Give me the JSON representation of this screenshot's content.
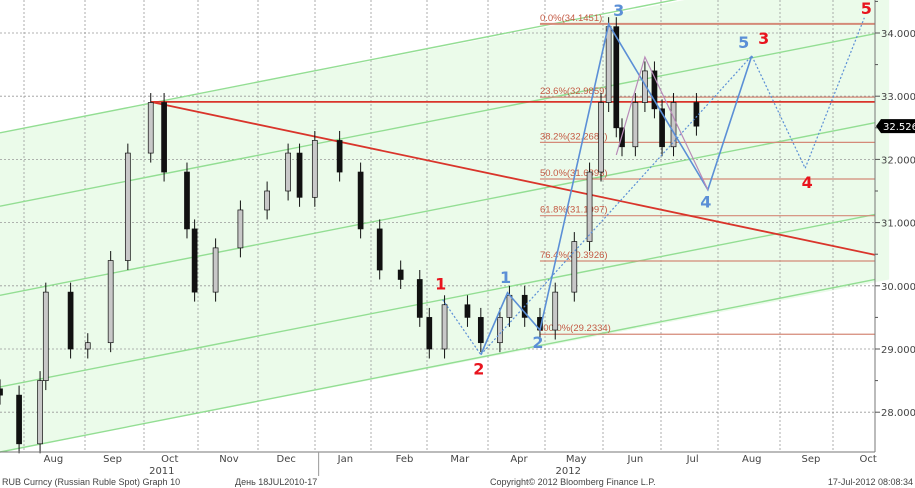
{
  "chart_data": {
    "type": "candlestick",
    "title": "RUB Curncy (Russian Ruble Spot) Graph 10",
    "period": "День 18JUL2010-17",
    "copyright": "Copyright© 2012 Bloomberg Finance L.P.",
    "timestamp": "17-Jul-2012 08:08:34",
    "ylim": [
      27.3,
      34.5
    ],
    "xlim": [
      "2011-07-18",
      "2012-10-26"
    ],
    "y_ticks": [
      "34.0000",
      "33.0000",
      "32.0000",
      "31.0000",
      "30.0000",
      "29.0000",
      "28.0000"
    ],
    "y_tick_values": [
      34,
      33,
      32,
      31,
      30,
      29,
      28
    ],
    "x_ticks": [
      {
        "label": "Aug",
        "date": "2011-08-15"
      },
      {
        "label": "Sep",
        "date": "2011-09-15"
      },
      {
        "label": "Oct",
        "date": "2011-10-15"
      },
      {
        "label": "Nov",
        "date": "2011-11-15"
      },
      {
        "label": "Dec",
        "date": "2011-12-15"
      },
      {
        "label": "Jan",
        "date": "2012-01-15"
      },
      {
        "label": "Feb",
        "date": "2012-02-15"
      },
      {
        "label": "Mar",
        "date": "2012-03-15"
      },
      {
        "label": "Apr",
        "date": "2012-04-15"
      },
      {
        "label": "May",
        "date": "2012-05-15"
      },
      {
        "label": "Jun",
        "date": "2012-06-15"
      },
      {
        "label": "Jul",
        "date": "2012-07-15"
      },
      {
        "label": "Aug",
        "date": "2012-08-15"
      },
      {
        "label": "Sep",
        "date": "2012-09-15"
      },
      {
        "label": "Oct",
        "date": "2012-10-15"
      }
    ],
    "year_labels": [
      {
        "label": "2011",
        "date": "2011-10-15"
      },
      {
        "label": "2012",
        "date": "2012-05-15"
      }
    ],
    "last_price": "32.5260",
    "last_price_value": 32.526,
    "grid": true,
    "series": [
      [
        "2011-07-18",
        28.27
      ],
      [
        "2011-07-28",
        27.5
      ],
      [
        "2011-08-08",
        28.5
      ],
      [
        "2011-08-11",
        29.9
      ],
      [
        "2011-08-24",
        29.0
      ],
      [
        "2011-09-02",
        29.1
      ],
      [
        "2011-09-14",
        30.4
      ],
      [
        "2011-09-23",
        32.1
      ],
      [
        "2011-10-05",
        32.9
      ],
      [
        "2011-10-12",
        31.8
      ],
      [
        "2011-10-24",
        30.9
      ],
      [
        "2011-10-28",
        29.9
      ],
      [
        "2011-11-08",
        30.6
      ],
      [
        "2011-11-21",
        31.2
      ],
      [
        "2011-12-05",
        31.5
      ],
      [
        "2011-12-16",
        32.1
      ],
      [
        "2011-12-22",
        31.4
      ],
      [
        "2011-12-30",
        32.3
      ],
      [
        "2012-01-12",
        31.8
      ],
      [
        "2012-01-23",
        30.9
      ],
      [
        "2012-02-02",
        30.25
      ],
      [
        "2012-02-13",
        30.1
      ],
      [
        "2012-02-23",
        29.5
      ],
      [
        "2012-02-28",
        29.0
      ],
      [
        "2012-03-07",
        29.7
      ],
      [
        "2012-03-19",
        29.5
      ],
      [
        "2012-03-26",
        29.1
      ],
      [
        "2012-04-05",
        29.5
      ],
      [
        "2012-04-10",
        29.85
      ],
      [
        "2012-04-18",
        29.5
      ],
      [
        "2012-04-26",
        29.3
      ],
      [
        "2012-05-04",
        29.9
      ],
      [
        "2012-05-14",
        30.7
      ],
      [
        "2012-05-22",
        31.8
      ],
      [
        "2012-05-28",
        32.9
      ],
      [
        "2012-06-01",
        34.1
      ],
      [
        "2012-06-05",
        32.5
      ],
      [
        "2012-06-08",
        32.2
      ],
      [
        "2012-06-15",
        32.9
      ],
      [
        "2012-06-20",
        33.4
      ],
      [
        "2012-06-25",
        32.8
      ],
      [
        "2012-06-29",
        32.2
      ],
      [
        "2012-07-05",
        32.9
      ],
      [
        "2012-07-17",
        32.526
      ]
    ],
    "fibonacci": {
      "start_date": "2012-04-26",
      "levels": [
        {
          "label": "0.0%(34.1451)",
          "value": 34.1451
        },
        {
          "label": "23.6%(32.9859)",
          "value": 32.9859
        },
        {
          "label": "38.2%(32.2688)",
          "value": 32.2688
        },
        {
          "label": "50.0%(31.6893)",
          "value": 31.6893
        },
        {
          "label": "61.8%(31.1097)",
          "value": 31.1097
        },
        {
          "label": "76.4%(30.3926)",
          "value": 30.3926
        },
        {
          "label": "100.0%(29.2334)",
          "value": 29.2334
        }
      ]
    },
    "resistance_line": {
      "value": 32.91,
      "from": "2011-10-05",
      "to": "2012-10-26"
    },
    "trend_line": {
      "from": [
        "2011-10-05",
        32.91
      ],
      "to": [
        "2012-10-26",
        30.49
      ]
    },
    "channel_lines": [
      {
        "from": [
          "2011-07-18",
          32.42
        ],
        "to": [
          "2012-10-26",
          35.15
        ]
      },
      {
        "from": [
          "2011-07-18",
          31.26
        ],
        "to": [
          "2012-10-26",
          33.99
        ]
      },
      {
        "from": [
          "2011-07-18",
          29.85
        ],
        "to": [
          "2012-10-26",
          32.58
        ]
      },
      {
        "from": [
          "2011-07-18",
          28.4
        ],
        "to": [
          "2012-10-26",
          31.13
        ]
      },
      {
        "from": [
          "2011-07-18",
          27.37
        ],
        "to": [
          "2012-10-26",
          30.1
        ]
      }
    ],
    "waves_blue": [
      {
        "label": "1",
        "date": "2012-04-09",
        "value": 29.89
      },
      {
        "label": "2",
        "date": "2012-04-26",
        "value": 29.3
      },
      {
        "label": "3",
        "date": "2012-06-01",
        "value": 34.14
      },
      {
        "label": "4",
        "date": "2012-07-23",
        "value": 31.52
      },
      {
        "label": "5",
        "date": "2012-08-15",
        "value": 33.64
      }
    ],
    "waves_red": [
      {
        "label": "1",
        "date": "2012-03-06",
        "value": 29.78
      },
      {
        "label": "2",
        "date": "2012-03-26",
        "value": 28.91
      },
      {
        "label": "3",
        "date": "2012-08-15",
        "value": 33.64
      },
      {
        "label": "4",
        "date": "2012-09-12",
        "value": 31.86
      },
      {
        "label": "5",
        "date": "2012-10-13",
        "value": 34.24
      }
    ],
    "pink_path": [
      [
        "2012-06-05",
        32.07
      ],
      [
        "2012-06-20",
        33.62
      ],
      [
        "2012-07-23",
        31.52
      ]
    ],
    "colors": {
      "channel": "#93de93",
      "channel_fill": "#ebfbea",
      "trend": "#d9352b",
      "fib": "#d48a78",
      "wave_blue": "#5b8fd6",
      "wave_red": "#e8141e",
      "pink": "#b88ab8"
    }
  }
}
